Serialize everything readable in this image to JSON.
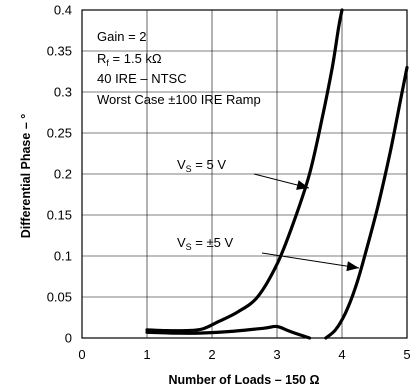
{
  "chart_data": {
    "type": "line",
    "xlabel": "Number of Loads – 150 Ω",
    "ylabel": "Differential Phase – °",
    "xlim": [
      0,
      5
    ],
    "ylim": [
      0,
      0.4
    ],
    "x_ticks": [
      "0",
      "1",
      "2",
      "3",
      "4",
      "5"
    ],
    "y_ticks": [
      "0",
      "0.05",
      "0.1",
      "0.15",
      "0.2",
      "0.25",
      "0.3",
      "0.35",
      "0.4"
    ],
    "grid": true,
    "conditions": {
      "gain": "Gain = 2",
      "rf_prefix": "R",
      "rf_sub": "f",
      "rf_value": " = 1.5 kΩ",
      "ire": "40 IRE – NTSC",
      "ramp": "Worst Case ±100 IRE Ramp"
    },
    "annotations": [
      {
        "prefix": "V",
        "sub": "S",
        "value": " = 5 V",
        "points_to": "VS = 5 V"
      },
      {
        "prefix": "V",
        "sub": "S",
        "value": " = ±5 V",
        "points_to": "VS = ±5 V"
      }
    ],
    "series": [
      {
        "name": "VS = 5 V",
        "x": [
          1.0,
          1.3,
          1.6,
          1.85,
          2.1,
          2.4,
          2.7,
          3.0,
          3.25,
          3.5,
          3.7,
          3.85,
          3.95,
          4.0
        ],
        "y": [
          0.01,
          0.009,
          0.009,
          0.011,
          0.02,
          0.032,
          0.05,
          0.09,
          0.14,
          0.2,
          0.27,
          0.33,
          0.38,
          0.4
        ]
      },
      {
        "name": "VS = ±5 V",
        "x": [
          1.0,
          1.4,
          1.8,
          2.3,
          2.8,
          3.0,
          3.2,
          3.5
        ],
        "y": [
          0.007,
          0.006,
          0.006,
          0.008,
          0.012,
          0.014,
          0.008,
          0.0
        ]
      },
      {
        "name": "VS = ±5 V",
        "x": [
          3.75,
          3.9,
          4.05,
          4.2,
          4.35,
          4.55,
          4.75,
          4.9,
          5.0
        ],
        "y": [
          0.0,
          0.01,
          0.03,
          0.06,
          0.1,
          0.16,
          0.23,
          0.29,
          0.33
        ]
      }
    ]
  }
}
